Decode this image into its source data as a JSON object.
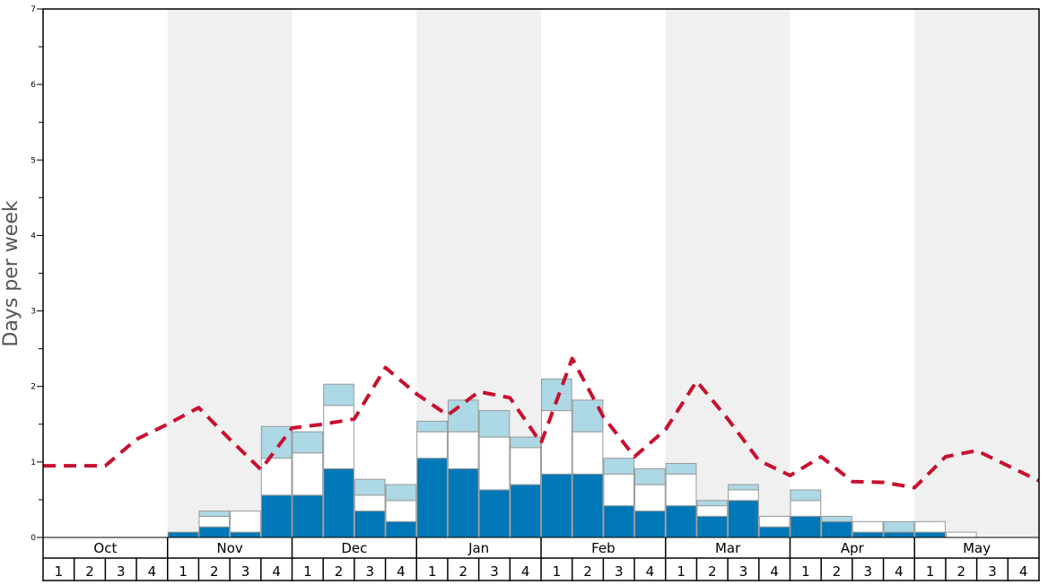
{
  "chart_data": {
    "type": "bar",
    "ylabel": "Days per week",
    "ylim": [
      0,
      7
    ],
    "y_ticks": [
      "0",
      "1",
      "2",
      "3",
      "4",
      "5",
      "6",
      "7"
    ],
    "months": [
      "Oct",
      "Nov",
      "Dec",
      "Jan",
      "Feb",
      "Mar",
      "Apr",
      "May"
    ],
    "week_labels": [
      "1",
      "2",
      "3",
      "4"
    ],
    "month_shading": [
      false,
      true,
      false,
      true,
      false,
      true,
      false,
      true
    ],
    "colors": {
      "dark_bar": "#0077b6",
      "white_bar": "#ffffff",
      "light_bar": "#add8e6",
      "bar_stroke": "#999999",
      "shade": "#f0f0f0",
      "line": "#c8102e"
    },
    "series": [
      {
        "color": "#0077b6",
        "values": [
          0,
          0,
          0,
          0,
          0.07,
          0.14,
          0.07,
          0.56,
          0.56,
          0.91,
          0.35,
          0.21,
          1.05,
          0.91,
          0.63,
          0.7,
          0.84,
          0.84,
          0.42,
          0.35,
          0.42,
          0.28,
          0.49,
          0.14,
          0.28,
          0.21,
          0.07,
          0.07,
          0.07,
          0,
          0,
          0
        ]
      },
      {
        "color": "#ffffff",
        "values": [
          0,
          0,
          0,
          0,
          0,
          0.14,
          0.28,
          0.49,
          0.56,
          0.84,
          0.21,
          0.28,
          0.35,
          0.49,
          0.7,
          0.49,
          0.84,
          0.56,
          0.42,
          0.35,
          0.42,
          0.14,
          0.14,
          0.14,
          0.21,
          0,
          0.14,
          0,
          0.14,
          0.07,
          0,
          0
        ]
      },
      {
        "color": "#add8e6",
        "values": [
          0,
          0,
          0,
          0,
          0,
          0.07,
          0,
          0.42,
          0.28,
          0.28,
          0.21,
          0.21,
          0.14,
          0.42,
          0.35,
          0.14,
          0.42,
          0.42,
          0.21,
          0.21,
          0.14,
          0.07,
          0.07,
          0,
          0.14,
          0.07,
          0,
          0.14,
          0,
          0,
          0,
          0
        ]
      }
    ],
    "trend_line": {
      "style": "dashed",
      "values": [
        0.95,
        0.95,
        0.95,
        1.3,
        1.5,
        1.72,
        1.3,
        0.9,
        1.45,
        1.5,
        1.57,
        2.25,
        1.9,
        1.62,
        1.93,
        1.85,
        1.25,
        2.37,
        1.6,
        1.07,
        1.43,
        2.07,
        1.57,
        1.02,
        0.82,
        1.07,
        0.74,
        0.73,
        0.66,
        1.07,
        1.15,
        0.95,
        0.75
      ]
    }
  }
}
